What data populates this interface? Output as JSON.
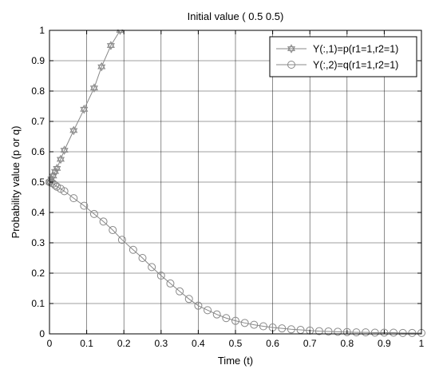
{
  "chart_data": {
    "type": "line",
    "title": "Initial value  ( 0.5  0.5)",
    "xlabel": "Time (t)",
    "ylabel": "Probability value (p or q)",
    "xlim": [
      0,
      1
    ],
    "ylim": [
      0,
      1
    ],
    "grid": true,
    "legend_position": "top-right",
    "x_ticks": [
      "0",
      "0.1",
      "0.2",
      "0.3",
      "0.4",
      "0.5",
      "0.6",
      "0.7",
      "0.8",
      "0.9",
      "1"
    ],
    "y_ticks": [
      "0",
      "0.1",
      "0.2",
      "0.3",
      "0.4",
      "0.5",
      "0.6",
      "0.7",
      "0.8",
      "0.9",
      "1"
    ],
    "series": [
      {
        "name": "Y(:,1)=p(r1=1,r2=1)",
        "marker": "hexagram",
        "color": "#888888",
        "x": [
          0,
          0.005,
          0.01,
          0.015,
          0.02,
          0.03,
          0.04,
          0.065,
          0.093,
          0.12,
          0.14,
          0.165,
          0.19
        ],
        "y": [
          0.5,
          0.51,
          0.52,
          0.535,
          0.545,
          0.575,
          0.605,
          0.67,
          0.74,
          0.81,
          0.88,
          0.95,
          1.0
        ]
      },
      {
        "name": "Y(:,2)=q(r1=1,r2=1)",
        "marker": "circle",
        "color": "#888888",
        "x": [
          0,
          0.005,
          0.01,
          0.015,
          0.02,
          0.03,
          0.04,
          0.065,
          0.093,
          0.12,
          0.145,
          0.17,
          0.195,
          0.225,
          0.25,
          0.275,
          0.3,
          0.325,
          0.35,
          0.375,
          0.4,
          0.425,
          0.45,
          0.475,
          0.5,
          0.525,
          0.55,
          0.575,
          0.6,
          0.625,
          0.65,
          0.675,
          0.7,
          0.725,
          0.75,
          0.775,
          0.8,
          0.825,
          0.85,
          0.875,
          0.9,
          0.925,
          0.95,
          0.975,
          1.0
        ],
        "y": [
          0.5,
          0.498,
          0.495,
          0.49,
          0.485,
          0.478,
          0.47,
          0.447,
          0.422,
          0.395,
          0.37,
          0.342,
          0.31,
          0.277,
          0.25,
          0.22,
          0.192,
          0.166,
          0.14,
          0.115,
          0.093,
          0.078,
          0.064,
          0.052,
          0.043,
          0.036,
          0.03,
          0.025,
          0.021,
          0.018,
          0.015,
          0.013,
          0.011,
          0.009,
          0.008,
          0.007,
          0.006,
          0.005,
          0.005,
          0.004,
          0.004,
          0.004,
          0.003,
          0.003,
          0.003
        ]
      }
    ]
  }
}
